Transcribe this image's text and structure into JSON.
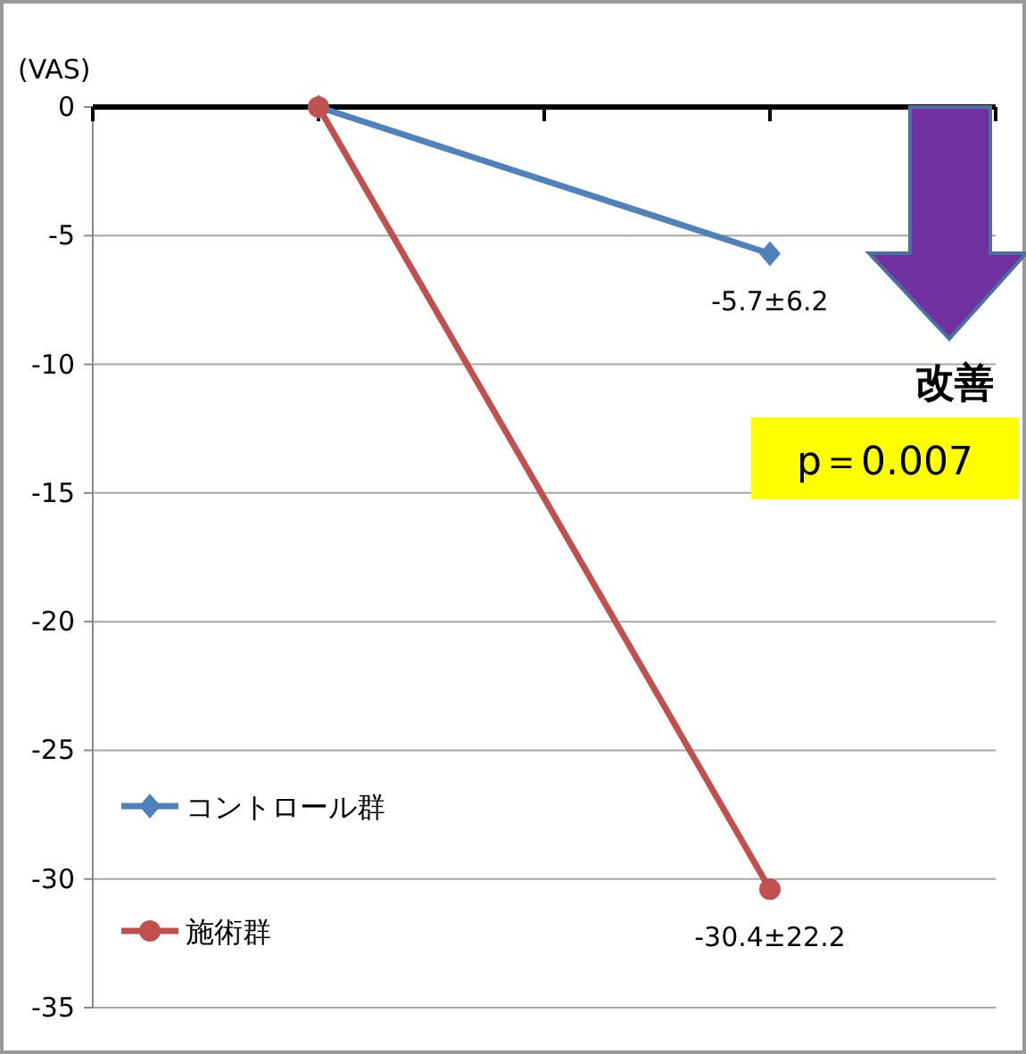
{
  "chart_data": {
    "type": "line",
    "ylabel": "(VAS)",
    "categories": [
      null,
      null,
      null,
      null,
      null,
      null
    ],
    "series": [
      {
        "name": "コントロール群",
        "color": "#4f81bd",
        "values": [
          null,
          0,
          null,
          null,
          -5.7,
          null
        ],
        "value_labels": [
          null,
          null,
          null,
          null,
          "-5.7±6.2",
          null
        ],
        "marker": "diamond"
      },
      {
        "name": "施術群",
        "color": "#c0504d",
        "values": [
          null,
          0,
          null,
          null,
          -30.4,
          null
        ],
        "value_labels": [
          null,
          null,
          null,
          null,
          "-30.4±22.2",
          null
        ],
        "marker": "circle"
      }
    ],
    "ylim": [
      -35,
      0
    ],
    "yticks": [
      0,
      -5,
      -10,
      -15,
      -20,
      -25,
      -30,
      -35
    ],
    "grid": "y",
    "legend": "bottom left",
    "annotations": [
      "改善",
      "p＝0.007"
    ]
  }
}
